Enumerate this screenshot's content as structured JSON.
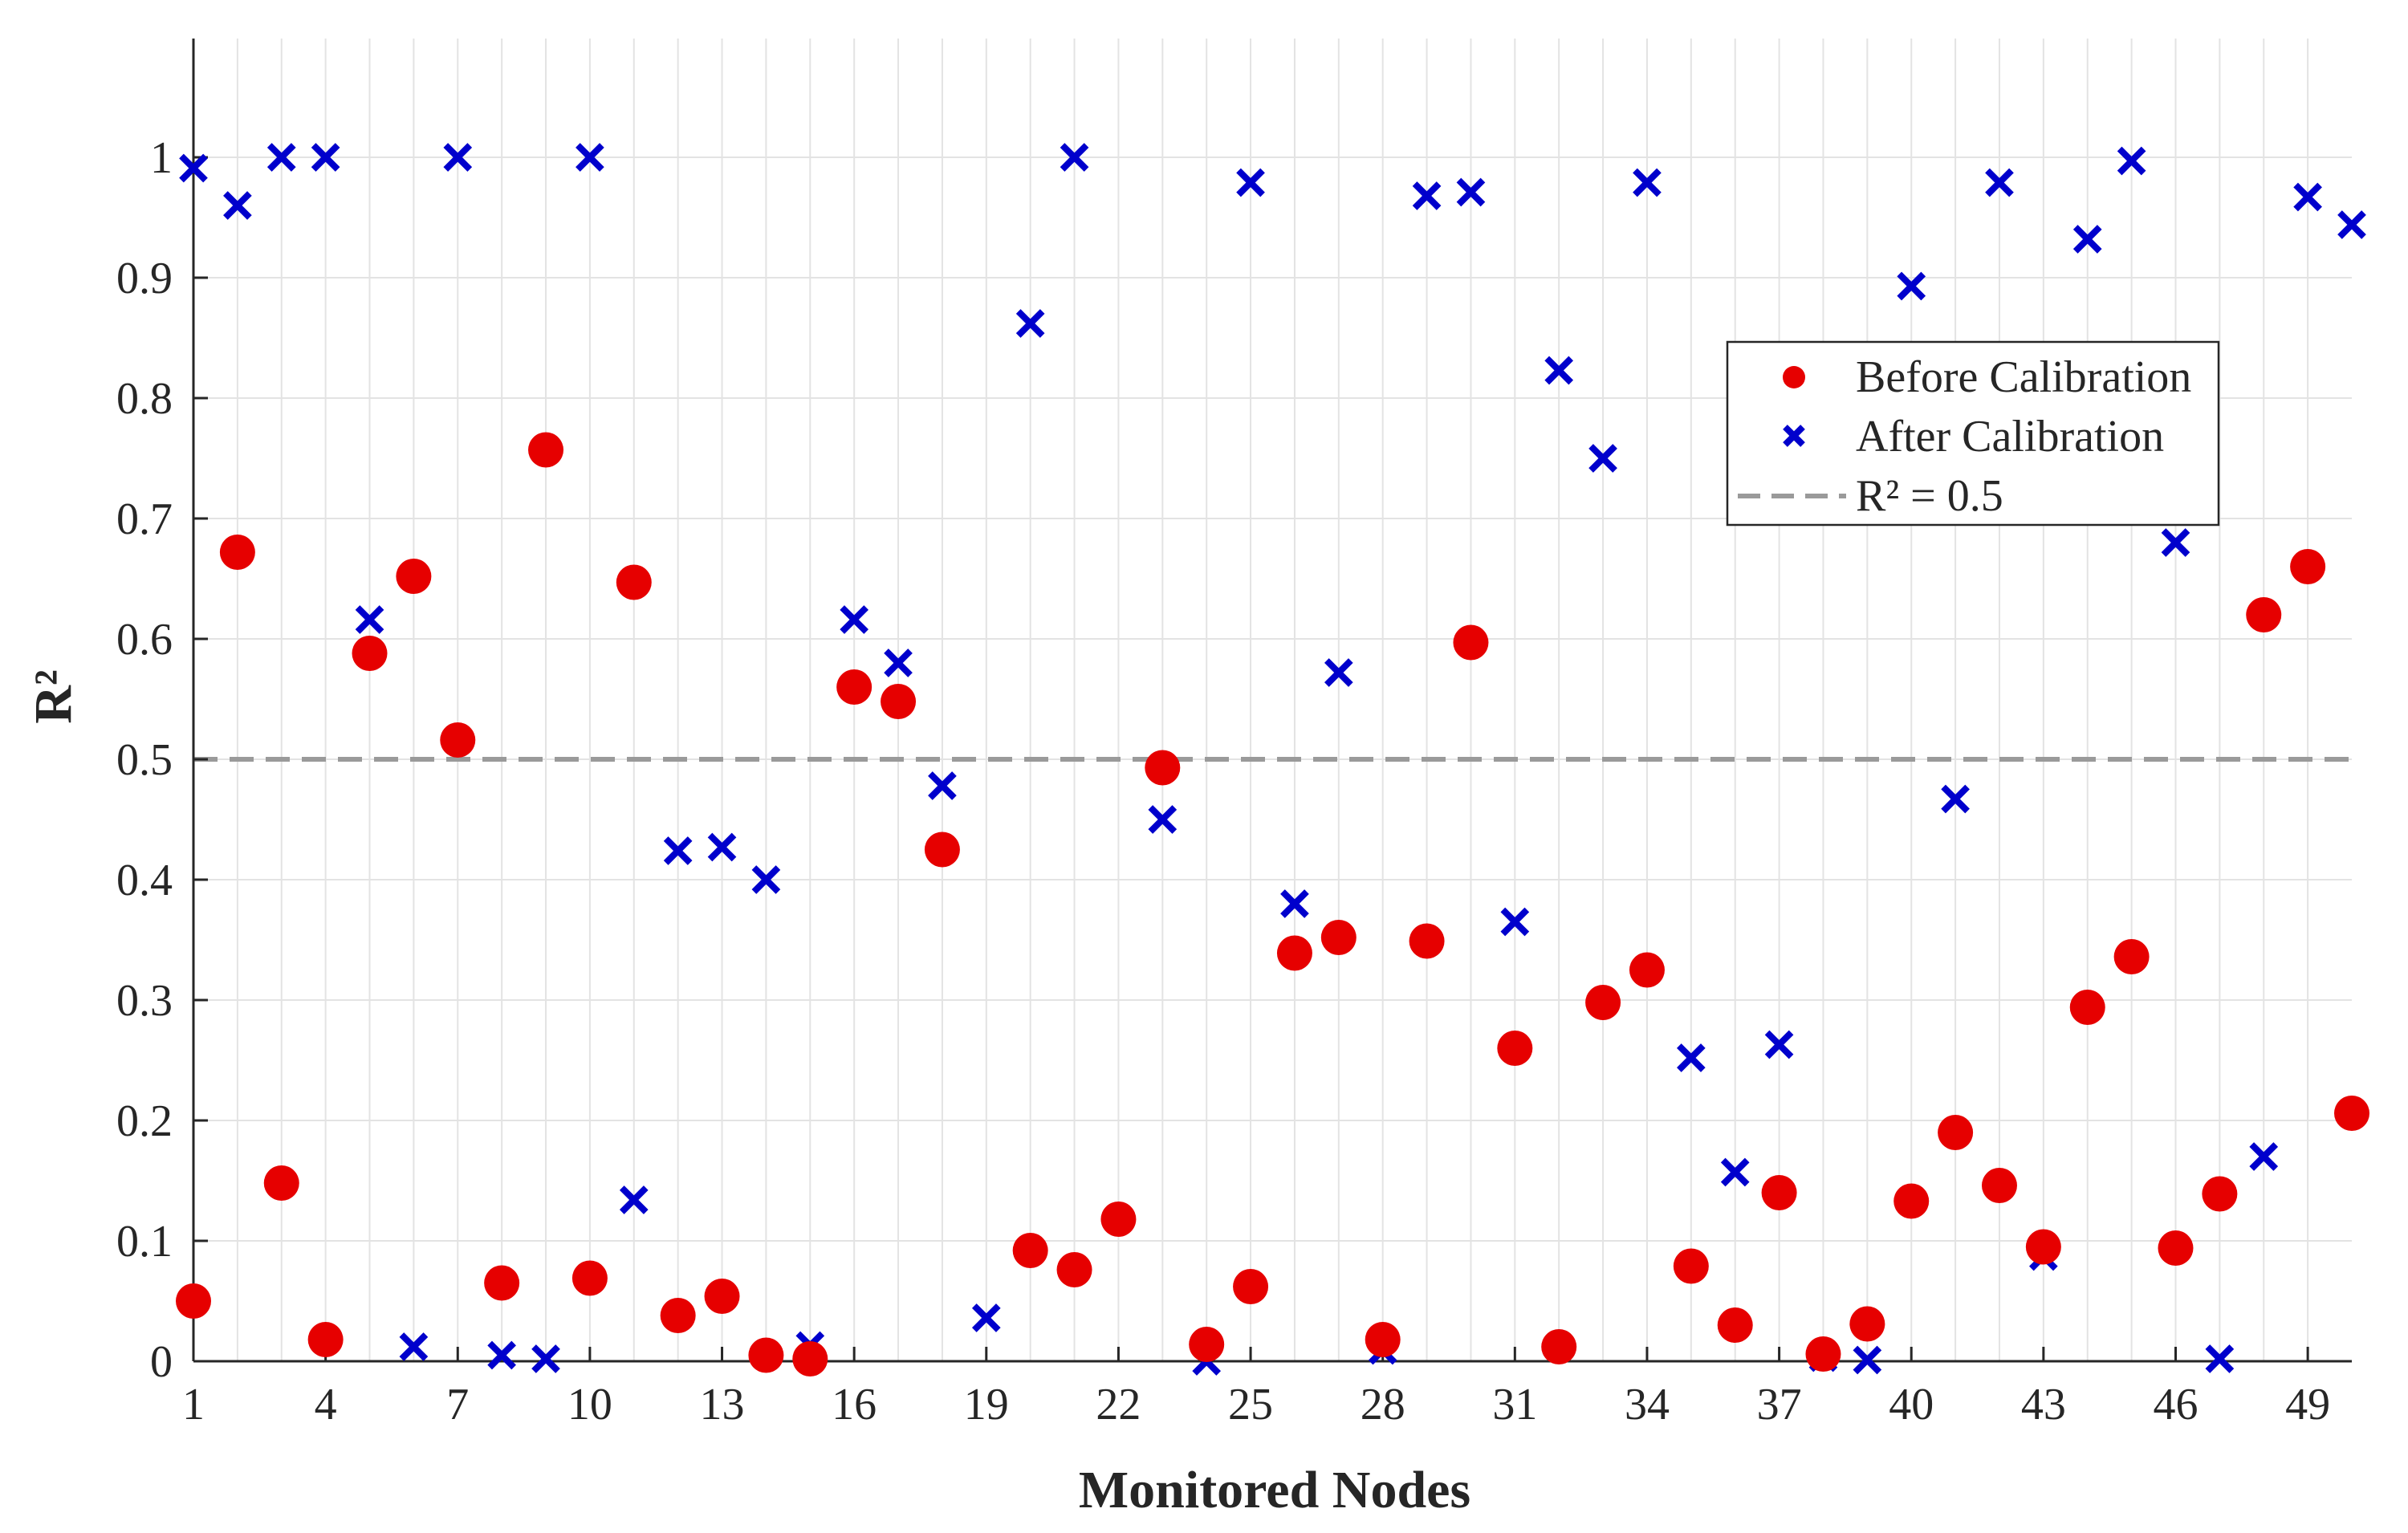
{
  "chart_data": {
    "type": "scatter",
    "xlabel": "Monitored Nodes",
    "ylabel": "R²",
    "xlim": [
      1,
      50
    ],
    "ylim": [
      0,
      1.1
    ],
    "x_ticks": [
      1,
      4,
      7,
      10,
      13,
      16,
      19,
      22,
      25,
      28,
      31,
      34,
      37,
      40,
      43,
      46,
      49
    ],
    "y_ticks": [
      0,
      0.1,
      0.2,
      0.3,
      0.4,
      0.5,
      0.6,
      0.7,
      0.8,
      0.9,
      1
    ],
    "y_tick_labels": [
      "0",
      "0.1",
      "0.2",
      "0.3",
      "0.4",
      "0.5",
      "0.6",
      "0.7",
      "0.8",
      "0.9",
      "1"
    ],
    "grid": true,
    "legend_position": "upper-right",
    "x": [
      1,
      2,
      3,
      4,
      5,
      6,
      7,
      8,
      9,
      10,
      11,
      12,
      13,
      14,
      15,
      16,
      17,
      18,
      19,
      20,
      21,
      22,
      23,
      24,
      25,
      26,
      27,
      28,
      29,
      30,
      31,
      32,
      33,
      34,
      35,
      36,
      37,
      38,
      39,
      40,
      41,
      42,
      43,
      44,
      45,
      46,
      47,
      48,
      49,
      50
    ],
    "series": [
      {
        "name": "Before Calibration",
        "marker": "circle",
        "color": "#e60000",
        "values": [
          0.05,
          0.672,
          0.148,
          0.018,
          0.588,
          0.652,
          0.516,
          0.065,
          0.757,
          0.069,
          0.647,
          0.038,
          0.054,
          0.005,
          0.002,
          0.56,
          0.548,
          0.425,
          null,
          0.092,
          0.076,
          0.118,
          0.493,
          0.014,
          0.062,
          0.339,
          0.352,
          0.018,
          0.349,
          0.597,
          0.26,
          0.012,
          0.298,
          0.325,
          0.079,
          0.03,
          0.14,
          0.006,
          0.031,
          0.133,
          0.19,
          0.146,
          0.095,
          0.294,
          0.336,
          0.094,
          0.139,
          0.62,
          0.66,
          0.206
        ]
      },
      {
        "name": "After Calibration",
        "marker": "x",
        "color": "#0000cc",
        "values": [
          0.991,
          0.96,
          1.0,
          1.0,
          0.616,
          0.012,
          1.0,
          0.005,
          0.002,
          1.0,
          0.134,
          0.424,
          0.427,
          0.4,
          0.013,
          0.616,
          0.58,
          0.478,
          0.036,
          0.862,
          1.0,
          null,
          0.45,
          0.0,
          0.979,
          0.38,
          0.572,
          0.009,
          0.968,
          0.971,
          0.365,
          0.823,
          0.75,
          0.979,
          0.252,
          0.157,
          0.263,
          0.003,
          0.001,
          0.893,
          0.467,
          0.979,
          0.087,
          0.932,
          0.997,
          0.68,
          0.002,
          0.17,
          0.967,
          0.944
        ]
      }
    ],
    "reference_line": {
      "name": "R² = 0.5",
      "y": 0.5,
      "style": "dashed",
      "color": "#9a9a9a"
    }
  }
}
